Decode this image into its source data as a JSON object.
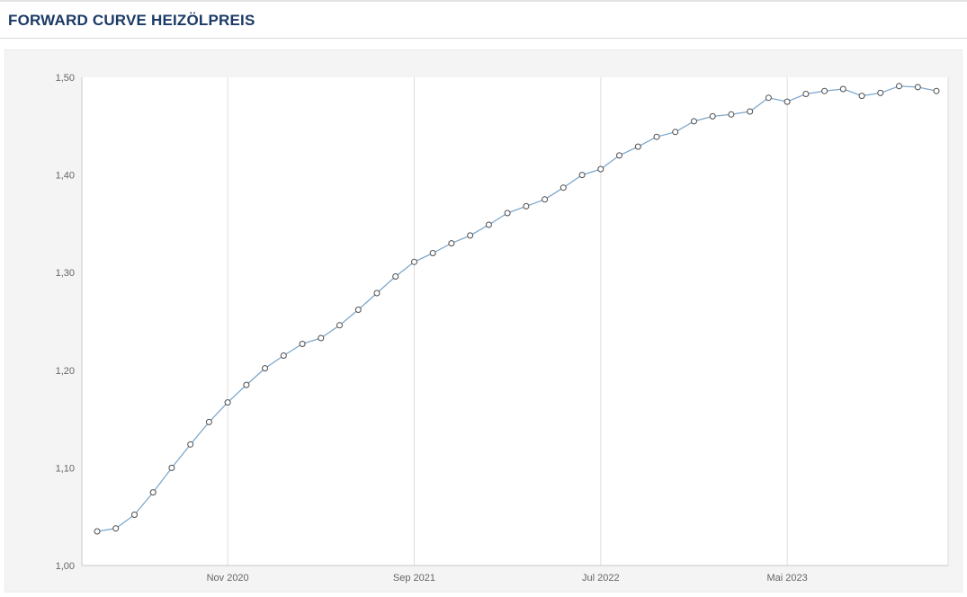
{
  "header": {
    "title": "FORWARD CURVE HEIZÖLPREIS"
  },
  "chart_data": {
    "type": "line",
    "title": "FORWARD CURVE HEIZÖLPREIS",
    "xlabel": "",
    "ylabel": "",
    "ylim": [
      1.0,
      1.5
    ],
    "grid": "vertical-only",
    "legend": "none",
    "line_color": "#7aa6cc",
    "marker": {
      "fill": "#ffffff",
      "stroke": "#4d4d4d"
    },
    "plot_background": "#ffffff",
    "chart_background": "#f4f4f4",
    "values": [
      1.035,
      1.038,
      1.052,
      1.075,
      1.1,
      1.124,
      1.147,
      1.167,
      1.185,
      1.202,
      1.215,
      1.227,
      1.233,
      1.246,
      1.262,
      1.279,
      1.296,
      1.311,
      1.32,
      1.33,
      1.338,
      1.349,
      1.361,
      1.368,
      1.375,
      1.387,
      1.4,
      1.406,
      1.42,
      1.429,
      1.439,
      1.444,
      1.455,
      1.46,
      1.462,
      1.465,
      1.479,
      1.475,
      1.483,
      1.486,
      1.488,
      1.481,
      1.484,
      1.491,
      1.49,
      1.486
    ],
    "x_ticks": [
      {
        "index": 7,
        "label": "Nov 2020"
      },
      {
        "index": 17,
        "label": "Sep 2021"
      },
      {
        "index": 27,
        "label": "Jul 2022"
      },
      {
        "index": 37,
        "label": "Mai 2023"
      }
    ],
    "y_ticks": [
      {
        "value": 1.0,
        "label": "1,00"
      },
      {
        "value": 1.1,
        "label": "1,10"
      },
      {
        "value": 1.2,
        "label": "1,20"
      },
      {
        "value": 1.3,
        "label": "1,30"
      },
      {
        "value": 1.4,
        "label": "1,40"
      },
      {
        "value": 1.5,
        "label": "1,50"
      }
    ]
  }
}
